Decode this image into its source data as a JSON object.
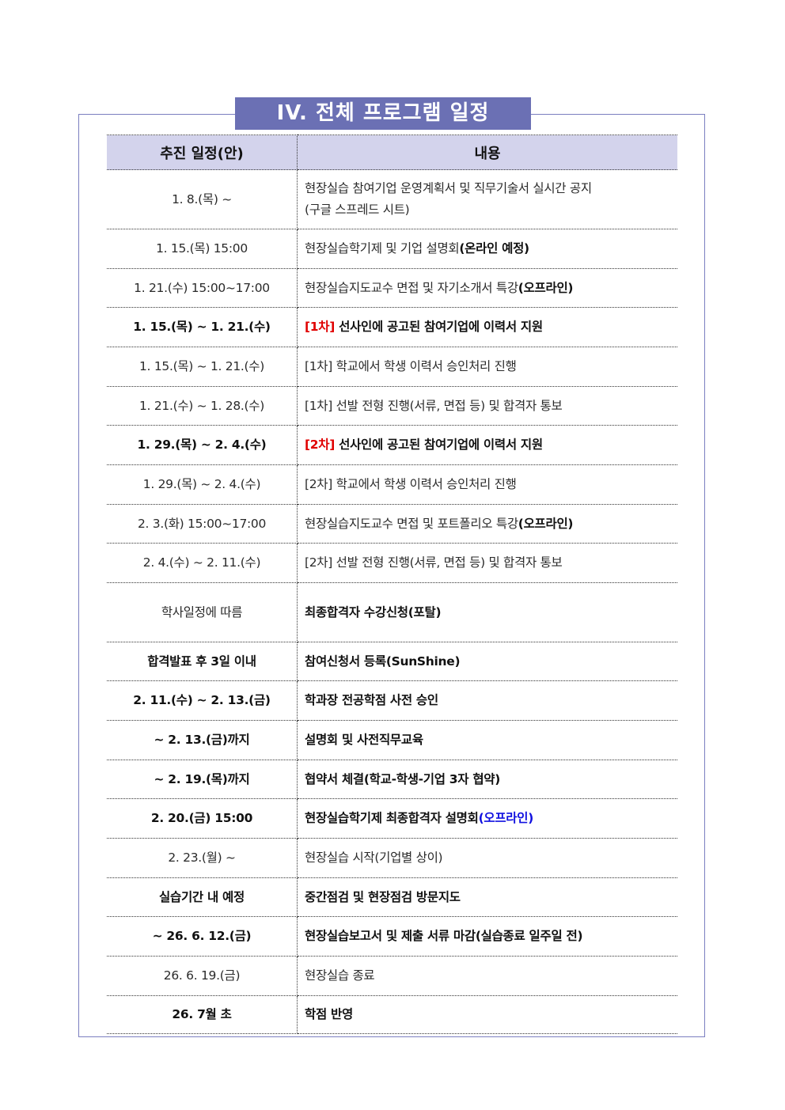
{
  "title": "IV. 전체 프로그램 일정",
  "header": {
    "col1": "추진 일정(안)",
    "col2": "내용"
  },
  "colors": {
    "title_bg": "#6b70b4",
    "header_bg": "#d3d3ec",
    "red": "#e00000",
    "blue": "#1010e0"
  },
  "rows": [
    {
      "date": "1. 8.(목) ~",
      "bold": false,
      "h": 75,
      "content": [
        {
          "t": "현장실습 참여기업 운영계획서 및 직무기술서 실시간 공지"
        },
        {
          "t": "\n(구글 스프레드 시트)"
        }
      ]
    },
    {
      "date": "1. 15.(목) 15:00",
      "bold": false,
      "h": 50,
      "content": [
        {
          "t": "현장실습학기제 및 기업 설명회"
        },
        {
          "t": "(온라인 예정)",
          "s": "bold"
        }
      ]
    },
    {
      "date": "1. 21.(수) 15:00~17:00",
      "bold": false,
      "h": 49,
      "content": [
        {
          "t": "현장실습지도교수 면접 및 자기소개서 특강"
        },
        {
          "t": "(오프라인)",
          "s": "blue bold"
        }
      ]
    },
    {
      "date": "1. 15.(목) ~ 1. 21.(수)",
      "bold": true,
      "h": 50,
      "content": [
        {
          "t": "[1차]",
          "s": "red"
        },
        {
          "t": " 선사인에 공고된 참여기업에 이력서 지원"
        }
      ]
    },
    {
      "date": "1. 15.(목) ~ 1. 21.(수)",
      "bold": false,
      "h": 50,
      "content": [
        {
          "t": "[1차] 학교에서 학생 이력서 승인처리 진행"
        }
      ]
    },
    {
      "date": "1. 21.(수) ~ 1. 28.(수)",
      "bold": false,
      "h": 49,
      "content": [
        {
          "t": "[1차] 선발 전형 진행(서류, 면접 등) 및 합격자 통보"
        }
      ]
    },
    {
      "date": "1. 29.(목) ~ 2. 4.(수)",
      "bold": true,
      "h": 50,
      "content": [
        {
          "t": "[2차]",
          "s": "red"
        },
        {
          "t": " 선사인에 공고된 참여기업에 이력서 지원"
        }
      ]
    },
    {
      "date": "1. 29.(목) ~ 2. 4.(수)",
      "bold": false,
      "h": 50,
      "content": [
        {
          "t": "[2차] 학교에서 학생 이력서 승인처리 진행"
        }
      ]
    },
    {
      "date": "2. 3.(화) 15:00~17:00",
      "bold": false,
      "h": 49,
      "content": [
        {
          "t": "현장실습지도교수 면접 및 포트폴리오 특강"
        },
        {
          "t": "(오프라인)",
          "s": "blue bold"
        }
      ]
    },
    {
      "date": "2. 4.(수) ~ 2. 11.(수)",
      "bold": false,
      "h": 50,
      "content": [
        {
          "t": "[2차] 선발 전형 진행(서류, 면접 등) 및 합격자 통보"
        }
      ]
    },
    {
      "date": "학사일정에 따름",
      "bold": false,
      "h": 75,
      "content": [
        {
          "t": "최종합격자 수강신청(포탈)",
          "s": "bold"
        }
      ]
    },
    {
      "date": "합격발표 후 3일 이내",
      "bold": true,
      "h": 49,
      "content": [
        {
          "t": "참여신청서 등록(SunShine)"
        }
      ]
    },
    {
      "date": "2. 11.(수) ~ 2. 13.(금)",
      "bold": true,
      "h": 50,
      "content": [
        {
          "t": "학과장 전공학점 사전 승인"
        }
      ]
    },
    {
      "date": "~ 2. 13.(금)까지",
      "bold": true,
      "h": 50,
      "content": [
        {
          "t": "설명회 및 사전직무교육"
        }
      ]
    },
    {
      "date": "~ 2. 19.(목)까지",
      "bold": true,
      "h": 49,
      "content": [
        {
          "t": "협약서 체결(학교-학생-기업 3자 협약)"
        }
      ]
    },
    {
      "date": "2. 20.(금) 15:00",
      "bold": true,
      "h": 50,
      "content": [
        {
          "t": "현장실습학기제 최종합격자 설명회"
        },
        {
          "t": "(오프라인)",
          "s": "blue"
        }
      ]
    },
    {
      "date": "2. 23.(월) ~",
      "bold": false,
      "h": 50,
      "content": [
        {
          "t": "현장실습 시작(기업별 상이)"
        }
      ]
    },
    {
      "date": "실습기간 내 예정",
      "bold": true,
      "h": 49,
      "content": [
        {
          "t": "중간점검 및 현장점검 방문지도"
        }
      ]
    },
    {
      "date": "~ 26. 6. 12.(금)",
      "bold": true,
      "h": 50,
      "content": [
        {
          "t": "현장실습보고서 및 제출 서류 마감(실습종료 일주일 전)"
        }
      ]
    },
    {
      "date": "26. 6. 19.(금)",
      "bold": false,
      "h": 50,
      "content": [
        {
          "t": "현장실습 종료"
        }
      ]
    },
    {
      "date": "26. 7월 초",
      "bold": true,
      "h": 48,
      "content": [
        {
          "t": "학점 반영"
        }
      ]
    }
  ]
}
